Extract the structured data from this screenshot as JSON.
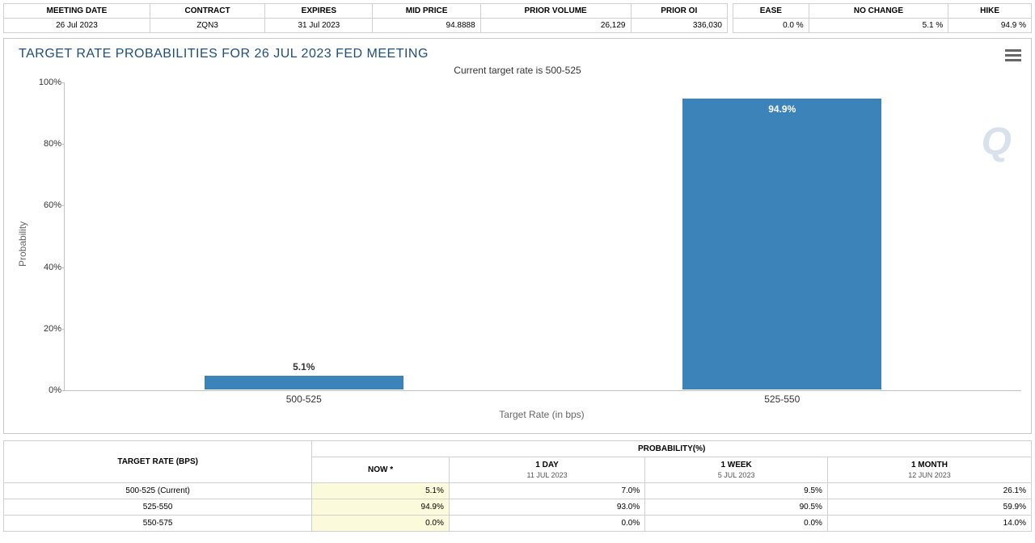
{
  "top_left": {
    "headers": [
      "MEETING DATE",
      "CONTRACT",
      "EXPIRES",
      "MID PRICE",
      "PRIOR VOLUME",
      "PRIOR OI"
    ],
    "row": {
      "meeting_date": "26 Jul 2023",
      "contract": "ZQN3",
      "expires": "31 Jul 2023",
      "mid_price": "94.8888",
      "prior_volume": "26,129",
      "prior_oi": "336,030"
    }
  },
  "top_right": {
    "headers": [
      "EASE",
      "NO CHANGE",
      "HIKE"
    ],
    "row": {
      "ease": "0.0 %",
      "no_change": "5.1 %",
      "hike": "94.9 %"
    }
  },
  "chart": {
    "title": "TARGET RATE PROBABILITIES FOR 26 JUL 2023 FED MEETING",
    "subtitle": "Current target rate is 500-525",
    "watermark": "Q",
    "type": "bar",
    "y_label": "Probability",
    "x_label": "Target Rate (in bps)",
    "ylim": [
      0,
      100
    ],
    "ytick_step": 20,
    "categories": [
      "500-525",
      "525-550"
    ],
    "values": [
      5.1,
      94.9
    ],
    "value_labels": [
      "5.1%",
      "94.9%"
    ],
    "bar_color": "#3c83b9",
    "grid_color": "#c0c0c0",
    "background_color": "#ffffff",
    "title_color": "#1f4e79",
    "title_fontsize": 16,
    "label_fontsize": 12,
    "bar_width": 0.42
  },
  "bottom": {
    "row_header": "TARGET RATE (BPS)",
    "group_header": "PROBABILITY(%)",
    "columns": [
      {
        "label": "NOW *",
        "sub": ""
      },
      {
        "label": "1 DAY",
        "sub": "11 JUL 2023"
      },
      {
        "label": "1 WEEK",
        "sub": "5 JUL 2023"
      },
      {
        "label": "1 MONTH",
        "sub": "12 JUN 2023"
      }
    ],
    "rows": [
      {
        "label": "500-525 (Current)",
        "vals": [
          "5.1%",
          "7.0%",
          "9.5%",
          "26.1%"
        ]
      },
      {
        "label": "525-550",
        "vals": [
          "94.9%",
          "93.0%",
          "90.5%",
          "59.9%"
        ]
      },
      {
        "label": "550-575",
        "vals": [
          "0.0%",
          "0.0%",
          "0.0%",
          "14.0%"
        ]
      }
    ],
    "highlight_col": 0,
    "highlight_color": "#fbfada"
  }
}
